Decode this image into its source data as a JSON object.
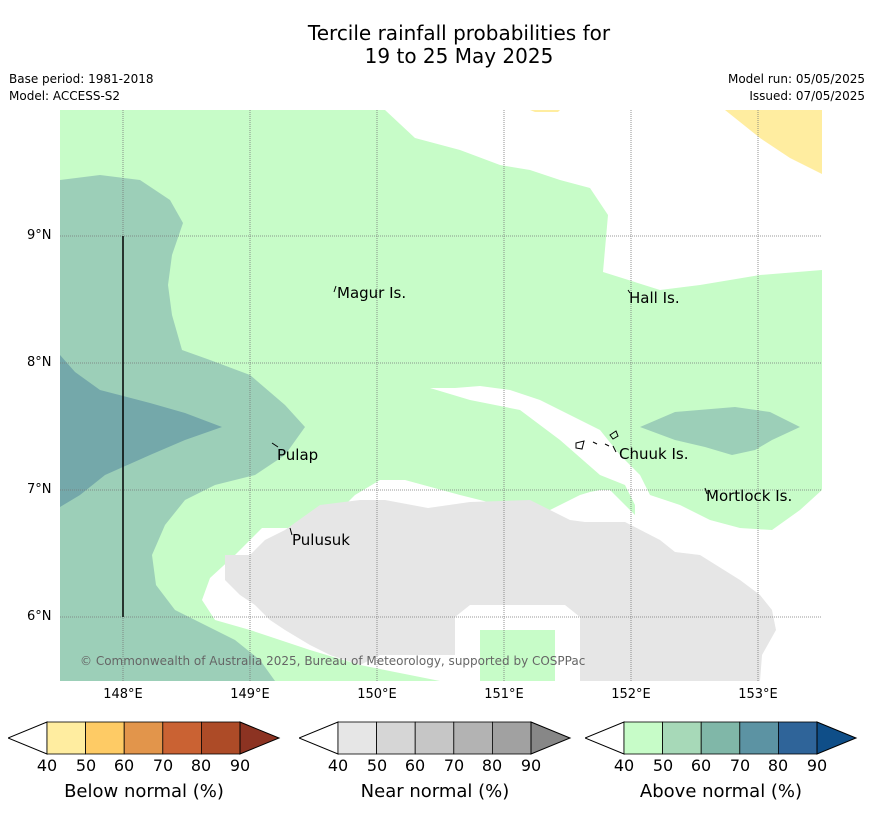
{
  "title_line1": "Tercile rainfall probabilities for",
  "title_line2": "19 to 25 May 2025",
  "meta": {
    "base_period": "Base period: 1981-2018",
    "model": "Model: ACCESS-S2",
    "model_run": "Model run: 05/05/2025",
    "issued": "Issued: 07/05/2025"
  },
  "map": {
    "latitude_ticks": [
      "9°N",
      "8°N",
      "7°N",
      "6°N"
    ],
    "longitude_ticks": [
      "148°E",
      "149°E",
      "150°E",
      "151°E",
      "152°E",
      "153°E"
    ],
    "places": [
      "Magur Is.",
      "Hall Is.",
      "Pulap",
      "Chuuk Is.",
      "Mortlock Is.",
      "Pulusuk"
    ],
    "copyright": "© Commonwealth of Australia 2025, Bureau of Meteorology, supported by COSPPac",
    "category_colors": {
      "below_40_50": "#ffeda0",
      "near_40_50": "#e6e6e6",
      "above_40_50": "#c7fcc8",
      "above_50_60": "#9ccfb8",
      "above_60_70": "#74a8aa"
    }
  },
  "legends": [
    {
      "label": "Below normal (%)",
      "ticks": [
        "40",
        "50",
        "60",
        "70",
        "80",
        "90"
      ],
      "colors": [
        "#ffeda0",
        "#fecb65",
        "#e2954b",
        "#ca6233",
        "#ad4b27",
        "#8c3322"
      ]
    },
    {
      "label": "Near normal (%)",
      "ticks": [
        "40",
        "50",
        "60",
        "70",
        "80",
        "90"
      ],
      "colors": [
        "#e6e6e6",
        "#d6d6d6",
        "#c6c6c6",
        "#b3b3b3",
        "#a1a1a1",
        "#878787"
      ]
    },
    {
      "label": "Above normal (%)",
      "ticks": [
        "40",
        "50",
        "60",
        "70",
        "80",
        "90"
      ],
      "colors": [
        "#c7fcc8",
        "#a7d9b8",
        "#80b7a8",
        "#5c93a3",
        "#2f6499",
        "#0f4e88"
      ]
    }
  ]
}
